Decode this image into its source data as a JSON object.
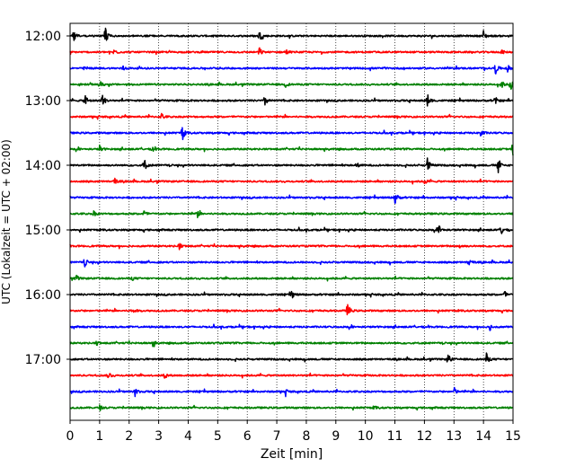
{
  "chart_data": {
    "type": "line",
    "title": "",
    "xlabel": "Zeit  [min]",
    "ylabel": "UTC (Lokalzeit = UTC + 02:00)",
    "xlim": [
      0,
      15
    ],
    "x_ticks": [
      0,
      1,
      2,
      3,
      4,
      5,
      6,
      7,
      8,
      9,
      10,
      11,
      12,
      13,
      14,
      15
    ],
    "grid": "vertical dotted lines at each minute",
    "y_tick_labels": [
      "12:00",
      "13:00",
      "14:00",
      "15:00",
      "16:00",
      "17:00"
    ],
    "trace_minutes": 15,
    "traces_per_hour": 4,
    "colors": [
      "#000000",
      "#ff0000",
      "#0000ff",
      "#008000"
    ],
    "series": [
      {
        "start": "12:00",
        "color": "#000000",
        "events": [
          [
            0.1,
            1.0
          ],
          [
            1.2,
            1.0
          ],
          [
            6.4,
            0.6
          ],
          [
            14.0,
            0.6
          ]
        ]
      },
      {
        "start": "12:15",
        "color": "#ff0000",
        "events": [
          [
            1.5,
            0.5
          ],
          [
            6.4,
            0.6
          ],
          [
            7.3,
            0.4
          ],
          [
            14.6,
            0.3
          ]
        ]
      },
      {
        "start": "12:30",
        "color": "#0000ff",
        "events": [
          [
            0.5,
            0.3
          ],
          [
            1.8,
            0.3
          ],
          [
            14.4,
            0.7
          ],
          [
            14.8,
            0.5
          ]
        ]
      },
      {
        "start": "12:45",
        "color": "#008000",
        "events": [
          [
            1.0,
            0.4
          ],
          [
            7.3,
            0.3
          ],
          [
            14.6,
            0.5
          ],
          [
            14.9,
            0.9
          ]
        ]
      },
      {
        "start": "13:00",
        "color": "#000000",
        "events": [
          [
            0.5,
            0.9
          ],
          [
            1.1,
            0.8
          ],
          [
            6.6,
            0.6
          ],
          [
            12.1,
            0.8
          ],
          [
            14.4,
            0.4
          ]
        ]
      },
      {
        "start": "13:15",
        "color": "#ff0000",
        "events": [
          [
            3.1,
            0.4
          ]
        ]
      },
      {
        "start": "13:30",
        "color": "#0000ff",
        "events": [
          [
            3.8,
            0.9
          ],
          [
            13.9,
            0.6
          ]
        ]
      },
      {
        "start": "13:45",
        "color": "#008000",
        "events": [
          [
            1.0,
            0.4
          ],
          [
            2.8,
            0.4
          ],
          [
            15.0,
            0.9
          ]
        ]
      },
      {
        "start": "14:00",
        "color": "#000000",
        "events": [
          [
            2.5,
            0.9
          ],
          [
            9.7,
            0.3
          ],
          [
            12.1,
            0.9
          ],
          [
            14.5,
            0.9
          ]
        ]
      },
      {
        "start": "14:15",
        "color": "#ff0000",
        "events": [
          [
            1.5,
            0.4
          ],
          [
            12.0,
            0.3
          ]
        ]
      },
      {
        "start": "14:30",
        "color": "#0000ff",
        "events": [
          [
            11.0,
            0.9
          ]
        ]
      },
      {
        "start": "14:45",
        "color": "#008000",
        "events": [
          [
            0.8,
            0.3
          ],
          [
            2.5,
            0.4
          ],
          [
            4.3,
            0.5
          ]
        ]
      },
      {
        "start": "15:00",
        "color": "#000000",
        "events": [
          [
            12.5,
            0.5
          ],
          [
            14.6,
            0.6
          ]
        ]
      },
      {
        "start": "15:15",
        "color": "#ff0000",
        "events": [
          [
            3.7,
            0.4
          ],
          [
            13.2,
            0.3
          ]
        ]
      },
      {
        "start": "15:30",
        "color": "#0000ff",
        "events": [
          [
            0.5,
            0.5
          ],
          [
            13.5,
            0.5
          ]
        ]
      },
      {
        "start": "15:45",
        "color": "#008000",
        "events": [
          [
            0.2,
            0.4
          ],
          [
            2.1,
            0.2
          ]
        ]
      },
      {
        "start": "16:00",
        "color": "#000000",
        "events": [
          [
            7.5,
            0.5
          ],
          [
            14.7,
            0.5
          ]
        ]
      },
      {
        "start": "16:15",
        "color": "#ff0000",
        "events": [
          [
            2.1,
            0.6
          ],
          [
            9.4,
            0.9
          ]
        ]
      },
      {
        "start": "16:30",
        "color": "#0000ff",
        "events": [
          [
            14.2,
            0.5
          ]
        ]
      },
      {
        "start": "16:45",
        "color": "#008000",
        "events": [
          [
            0.9,
            0.3
          ],
          [
            2.8,
            0.4
          ]
        ]
      },
      {
        "start": "17:00",
        "color": "#000000",
        "events": [
          [
            12.8,
            0.6
          ],
          [
            14.1,
            0.7
          ]
        ]
      },
      {
        "start": "17:15",
        "color": "#ff0000",
        "events": [
          [
            1.3,
            0.5
          ],
          [
            3.2,
            0.4
          ]
        ]
      },
      {
        "start": "17:30",
        "color": "#0000ff",
        "events": [
          [
            2.2,
            0.5
          ],
          [
            7.3,
            0.3
          ],
          [
            13.0,
            0.5
          ]
        ]
      },
      {
        "start": "17:45",
        "color": "#008000",
        "events": [
          [
            1.0,
            0.3
          ],
          [
            10.3,
            0.2
          ]
        ]
      }
    ]
  }
}
